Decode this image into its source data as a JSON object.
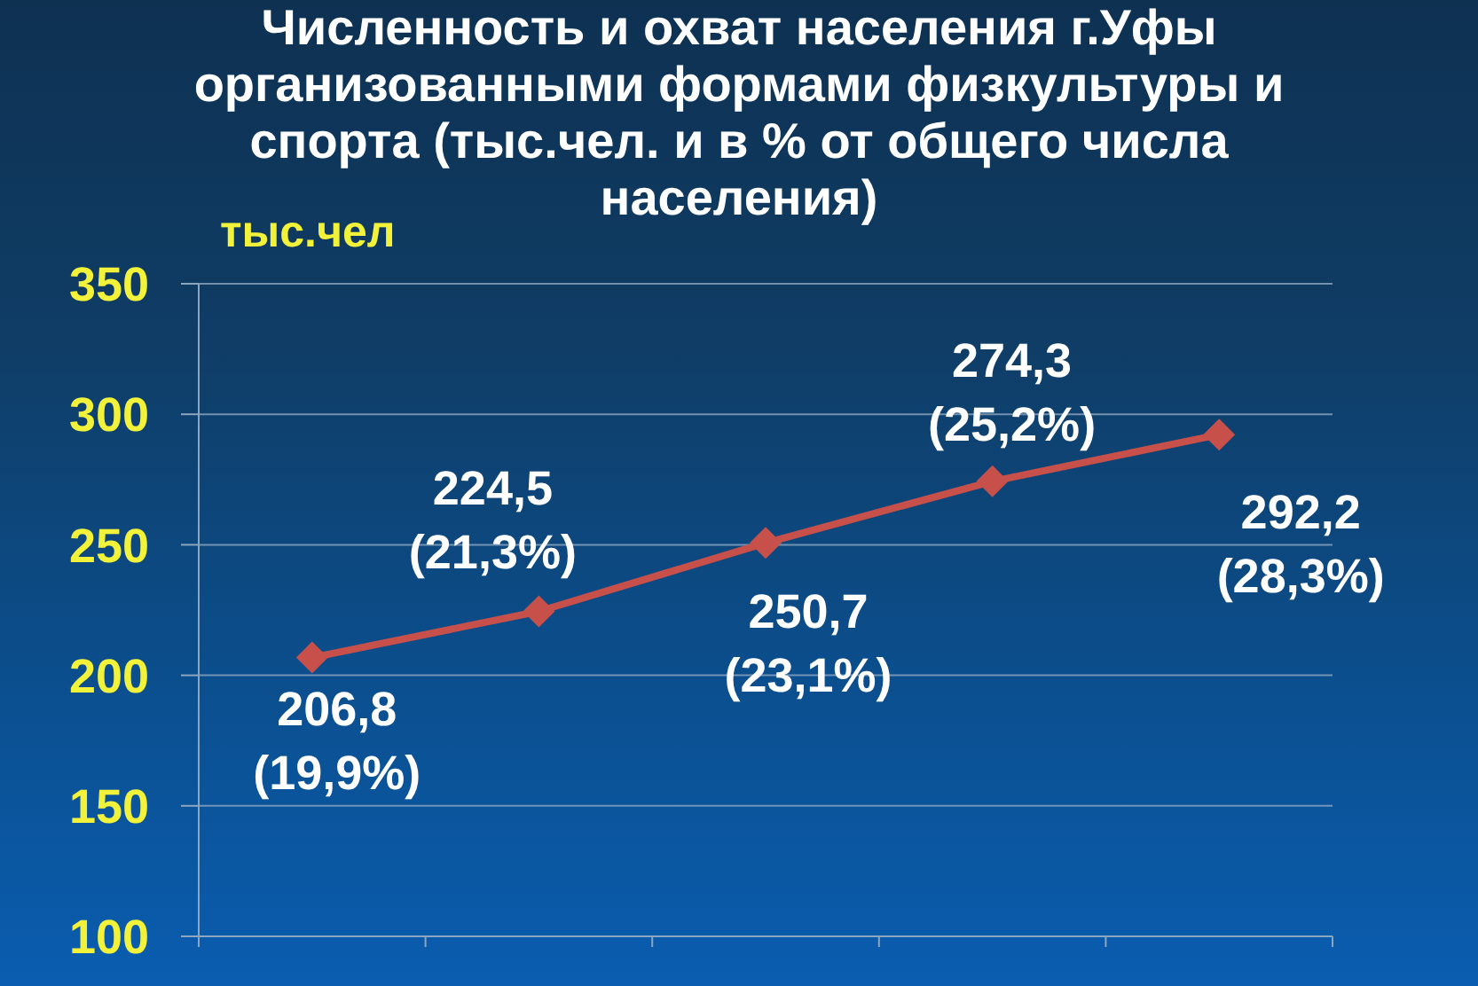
{
  "chart_data": {
    "type": "line",
    "title": "Численность и охват населения г.Уфы организованными формами физкультуры и спорта (тыс.чел. и в % от общего числа населения)",
    "ylabel": "тыс.чел",
    "categories": [
      null,
      null,
      null,
      null,
      null
    ],
    "series": [
      {
        "color": "#c8504b",
        "values": [
          206.8,
          224.5,
          250.7,
          274.3,
          292.2
        ],
        "value_labels": [
          "206,8 (19,9%)",
          "224,5 (21,3%)",
          "250,7 (23,1%)",
          "274,3 (25,2%)",
          "292,2 (28,3%)"
        ]
      }
    ],
    "ylim": [
      100,
      350
    ],
    "yticks": [
      100,
      150,
      200,
      250,
      300,
      350
    ],
    "grid": "y",
    "marker": "diamond",
    "line_style": "solid"
  }
}
